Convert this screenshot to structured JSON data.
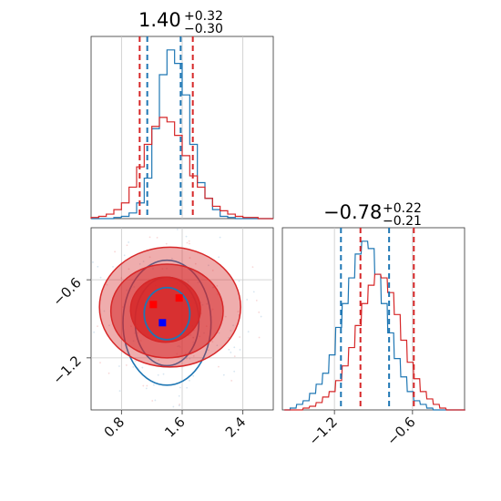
{
  "chart_data": {
    "type": "corner",
    "colors": {
      "blue": "#1f77b4",
      "red": "#d62728"
    },
    "panels": [
      {
        "name": "hist-param-1",
        "title": {
          "value": "1.40",
          "plus": "+0.32",
          "minus": "−0.30"
        },
        "xlim": [
          0.4,
          2.8
        ],
        "grid": true,
        "ticks": [
          0.8,
          1.6,
          2.4
        ],
        "x_centers": [
          0.45,
          0.55,
          0.65,
          0.75,
          0.85,
          0.95,
          1.05,
          1.15,
          1.25,
          1.35,
          1.45,
          1.55,
          1.65,
          1.75,
          1.85,
          1.95,
          2.05,
          2.15,
          2.25,
          2.35,
          2.45,
          2.55,
          2.65,
          2.75
        ],
        "series": [
          {
            "color": "blue",
            "values": [
              0,
              0,
              0,
              0.5,
              1,
              2.5,
              7,
              18,
              40,
              64,
              75,
              69,
              55,
              33,
              16,
              9,
              4,
              1,
              0.5,
              0,
              0,
              0,
              0,
              0
            ]
          },
          {
            "color": "red",
            "values": [
              0.5,
              1,
              2,
              4,
              7,
              14,
              23,
              33,
              41,
              45,
              43,
              37,
              28,
              19,
              14,
              9,
              5.5,
              3.5,
              2,
              1,
              0.5,
              0.5,
              0,
              0
            ]
          }
        ],
        "quantile_lines": [
          {
            "color": "red",
            "x": 1.04
          },
          {
            "color": "blue",
            "x": 1.14
          },
          {
            "color": "blue",
            "x": 1.58
          },
          {
            "color": "red",
            "x": 1.74
          }
        ]
      },
      {
        "name": "hist-param-2",
        "title": {
          "value": "−0.78",
          "plus": "+0.22",
          "minus": "−0.21"
        },
        "xlim": [
          -1.6,
          -0.2
        ],
        "grid": true,
        "ticks": [
          -1.2,
          -0.6
        ],
        "x_centers": [
          -1.5625,
          -1.5175,
          -1.4675,
          -1.4175,
          -1.3675,
          -1.3175,
          -1.2675,
          -1.2175,
          -1.1675,
          -1.1175,
          -1.0675,
          -1.0175,
          -0.9675,
          -0.9175,
          -0.8675,
          -0.8175,
          -0.7675,
          -0.7175,
          -0.6675,
          -0.6175,
          -0.5675,
          -0.5175,
          -0.4675,
          -0.4175,
          -0.3675,
          -0.3175,
          -0.2675,
          -0.2175
        ],
        "series": [
          {
            "color": "blue",
            "values": [
              0,
              1,
              3,
              5,
              9,
              14,
              20,
              30,
              45,
              58,
              72,
              85,
              92,
              88,
              74,
              58,
              42,
              28,
              18,
              10,
              5,
              3,
              1,
              0,
              0,
              0,
              0,
              0
            ]
          },
          {
            "color": "red",
            "values": [
              0,
              0,
              0,
              1,
              2,
              4,
              7,
              10,
              16,
              24,
              34,
              46,
              58,
              68,
              74,
              72,
              64,
              52,
              38,
              26,
              17,
              10,
              6,
              3,
              1,
              0,
              0,
              0
            ]
          }
        ],
        "quantile_lines": [
          {
            "color": "blue",
            "x": -1.15
          },
          {
            "color": "red",
            "x": -1.0
          },
          {
            "color": "blue",
            "x": -0.78
          },
          {
            "color": "red",
            "x": -0.59
          }
        ]
      },
      {
        "name": "scatter-2d",
        "xlim": [
          0.4,
          2.8
        ],
        "ylim": [
          -1.6,
          -0.2
        ],
        "grid": true,
        "xticks": [
          0.8,
          1.6,
          2.4
        ],
        "yticks": [
          -0.6,
          -1.2
        ],
        "red_contours": [
          {
            "x": [
              1.25,
              1.7
            ],
            "y": [
              -0.8,
              -0.8
            ]
          }
        ],
        "red_ellipses": [
          {
            "cx": 1.44,
            "cy": -0.81,
            "rx": 0.93,
            "ry": 0.46,
            "opacity": 0.38,
            "stroke": true
          },
          {
            "cx": 1.4,
            "cy": -0.84,
            "rx": 0.74,
            "ry": 0.36,
            "opacity": 0.55,
            "stroke": true
          },
          {
            "cx": 1.38,
            "cy": -0.83,
            "rx": 0.46,
            "ry": 0.25,
            "opacity": 0.85,
            "stroke": true
          }
        ],
        "blue_ellipses": [
          {
            "cx": 1.4,
            "cy": -0.93,
            "rx": 0.58,
            "ry": 0.48
          },
          {
            "cx": 1.4,
            "cy": -0.92,
            "rx": 0.42,
            "ry": 0.34
          },
          {
            "cx": 1.4,
            "cy": -0.86,
            "rx": 0.3,
            "ry": 0.2
          }
        ],
        "red_points": [
          {
            "x": 1.22,
            "y": -0.79
          },
          {
            "x": 1.56,
            "y": -0.74
          }
        ],
        "blue_points": [
          {
            "x": 1.34,
            "y": -0.93
          }
        ]
      }
    ]
  }
}
